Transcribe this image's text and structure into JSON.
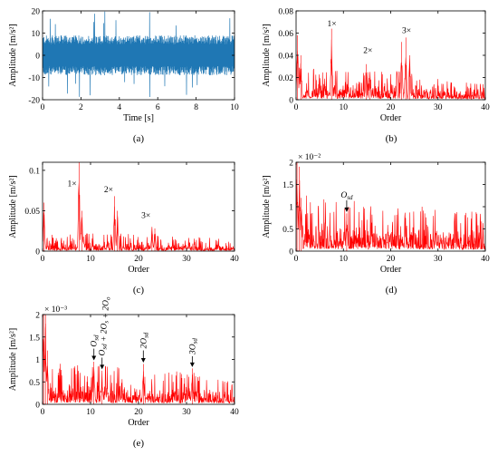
{
  "chart_data": [
    {
      "id": "a",
      "type": "line",
      "caption": "(a)",
      "color": "#1f77b4",
      "xlabel": "Time [s]",
      "ylabel": "Amplitude [m/s²]",
      "xlim": [
        0,
        10
      ],
      "ylim": [
        -20,
        20
      ],
      "xticks": [
        "0",
        "2",
        "4",
        "6",
        "8",
        "10"
      ],
      "yticks": [
        "-20",
        "-10",
        "0",
        "10",
        "20"
      ],
      "band": {
        "x": [
          0,
          10
        ],
        "core": [
          -9,
          9
        ],
        "peak_max": 20,
        "peak_min": -21
      },
      "scale_label": "",
      "annotations": []
    },
    {
      "id": "b",
      "type": "line",
      "caption": "(b)",
      "color": "#ff0000",
      "xlabel": "Order",
      "ylabel": "Amplitude [m/s²]",
      "xlim": [
        0,
        40
      ],
      "ylim": [
        0,
        0.08
      ],
      "xticks": [
        "0",
        "10",
        "20",
        "30",
        "40"
      ],
      "yticks": [
        "0",
        "0.02",
        "0.04",
        "0.06",
        "0.08"
      ],
      "baseline": [
        [
          0,
          0.012
        ],
        [
          2,
          0.011
        ],
        [
          10,
          0.01
        ],
        [
          20,
          0.011
        ],
        [
          28,
          0.008
        ],
        [
          40,
          0.006
        ]
      ],
      "peaks": [
        [
          0.3,
          0.058
        ],
        [
          1,
          0.04
        ],
        [
          7.5,
          0.064
        ],
        [
          14.8,
          0.032
        ],
        [
          15.6,
          0.025
        ],
        [
          22.3,
          0.052
        ],
        [
          23.2,
          0.056
        ],
        [
          24,
          0.04
        ]
      ],
      "scale_label": "",
      "annotations": [
        {
          "text": "1×",
          "x": 6.6,
          "y": 0.066
        },
        {
          "text": "2×",
          "x": 14.2,
          "y": 0.042
        },
        {
          "text": "3×",
          "x": 22.4,
          "y": 0.06
        }
      ]
    },
    {
      "id": "c",
      "type": "line",
      "caption": "(c)",
      "color": "#ff0000",
      "xlabel": "Order",
      "ylabel": "Amplitude [m/s²]",
      "xlim": [
        0,
        40
      ],
      "ylim": [
        0,
        0.11
      ],
      "xticks": [
        "0",
        "10",
        "20",
        "30",
        "40"
      ],
      "yticks": [
        "0",
        "0.05",
        "0.1"
      ],
      "baseline": [
        [
          0,
          0.008
        ],
        [
          5,
          0.008
        ],
        [
          10,
          0.009
        ],
        [
          20,
          0.008
        ],
        [
          30,
          0.007
        ],
        [
          40,
          0.006
        ]
      ],
      "peaks": [
        [
          0.3,
          0.06
        ],
        [
          7.6,
          0.11
        ],
        [
          8.2,
          0.05
        ],
        [
          15,
          0.068
        ],
        [
          15.6,
          0.05
        ],
        [
          22.8,
          0.03
        ],
        [
          23.4,
          0.028
        ]
      ],
      "scale_label": "",
      "annotations": [
        {
          "text": "1×",
          "x": 5.2,
          "y": 0.08
        },
        {
          "text": "2×",
          "x": 12.8,
          "y": 0.073
        },
        {
          "text": "3×",
          "x": 20.6,
          "y": 0.041
        }
      ]
    },
    {
      "id": "d",
      "type": "line",
      "caption": "(d)",
      "color": "#ff0000",
      "xlabel": "Order",
      "ylabel": "Amplitude [m/s²]",
      "xlim": [
        0,
        40
      ],
      "ylim": [
        0,
        2
      ],
      "xticks": [
        "0",
        "10",
        "20",
        "30",
        "40"
      ],
      "yticks": [
        "0",
        "0.5",
        "1",
        "1.5",
        "2"
      ],
      "baseline": [
        [
          0,
          0.45
        ],
        [
          3,
          0.5
        ],
        [
          10,
          0.45
        ],
        [
          20,
          0.4
        ],
        [
          30,
          0.38
        ],
        [
          40,
          0.33
        ]
      ],
      "peaks": [
        [
          0.2,
          2
        ],
        [
          0.7,
          1.9
        ],
        [
          1.1,
          1.2
        ],
        [
          10.7,
          0.85
        ]
      ],
      "scale_label": "× 10⁻²",
      "annotations": [
        {
          "text": "O_sd",
          "x": 10.7,
          "y": 1.0,
          "arrow": [
            10.7,
            1.02,
            0.9
          ]
        }
      ]
    },
    {
      "id": "e",
      "type": "line",
      "caption": "(e)",
      "color": "#ff0000",
      "xlabel": "Order",
      "ylabel": "Amplitude [m/s²]",
      "xlim": [
        0,
        40
      ],
      "ylim": [
        0,
        2
      ],
      "xticks": [
        "0",
        "10",
        "20",
        "30",
        "40"
      ],
      "yticks": [
        "0",
        "0.5",
        "1",
        "1.5",
        "2"
      ],
      "baseline": [
        [
          0,
          0.35
        ],
        [
          5,
          0.35
        ],
        [
          10,
          0.35
        ],
        [
          20,
          0.3
        ],
        [
          30,
          0.28
        ],
        [
          40,
          0.22
        ]
      ],
      "peaks": [
        [
          0.2,
          2
        ],
        [
          0.6,
          2
        ],
        [
          1,
          1.2
        ],
        [
          10.7,
          0.95
        ],
        [
          12.4,
          0.75
        ],
        [
          21,
          0.9
        ],
        [
          31.2,
          0.8
        ]
      ],
      "scale_label": "× 10⁻³",
      "annotations": [
        {
          "text": "O_sd",
          "x": 10.7,
          "y": 1.05,
          "arrow": [
            10.7,
            1.12,
            1.0
          ],
          "vertical": true
        },
        {
          "text": "O_sd + 2O_s + 2O_o",
          "x": 12.4,
          "y": 0.85,
          "arrow": [
            12.4,
            0.92,
            0.8
          ],
          "vertical": true
        },
        {
          "text": "2O_sd",
          "x": 21,
          "y": 1.0,
          "arrow": [
            21,
            1.08,
            0.95
          ],
          "vertical": true
        },
        {
          "text": "3O_sd",
          "x": 31.2,
          "y": 0.9,
          "arrow": [
            31.2,
            0.95,
            0.85
          ],
          "vertical": true
        }
      ]
    }
  ]
}
